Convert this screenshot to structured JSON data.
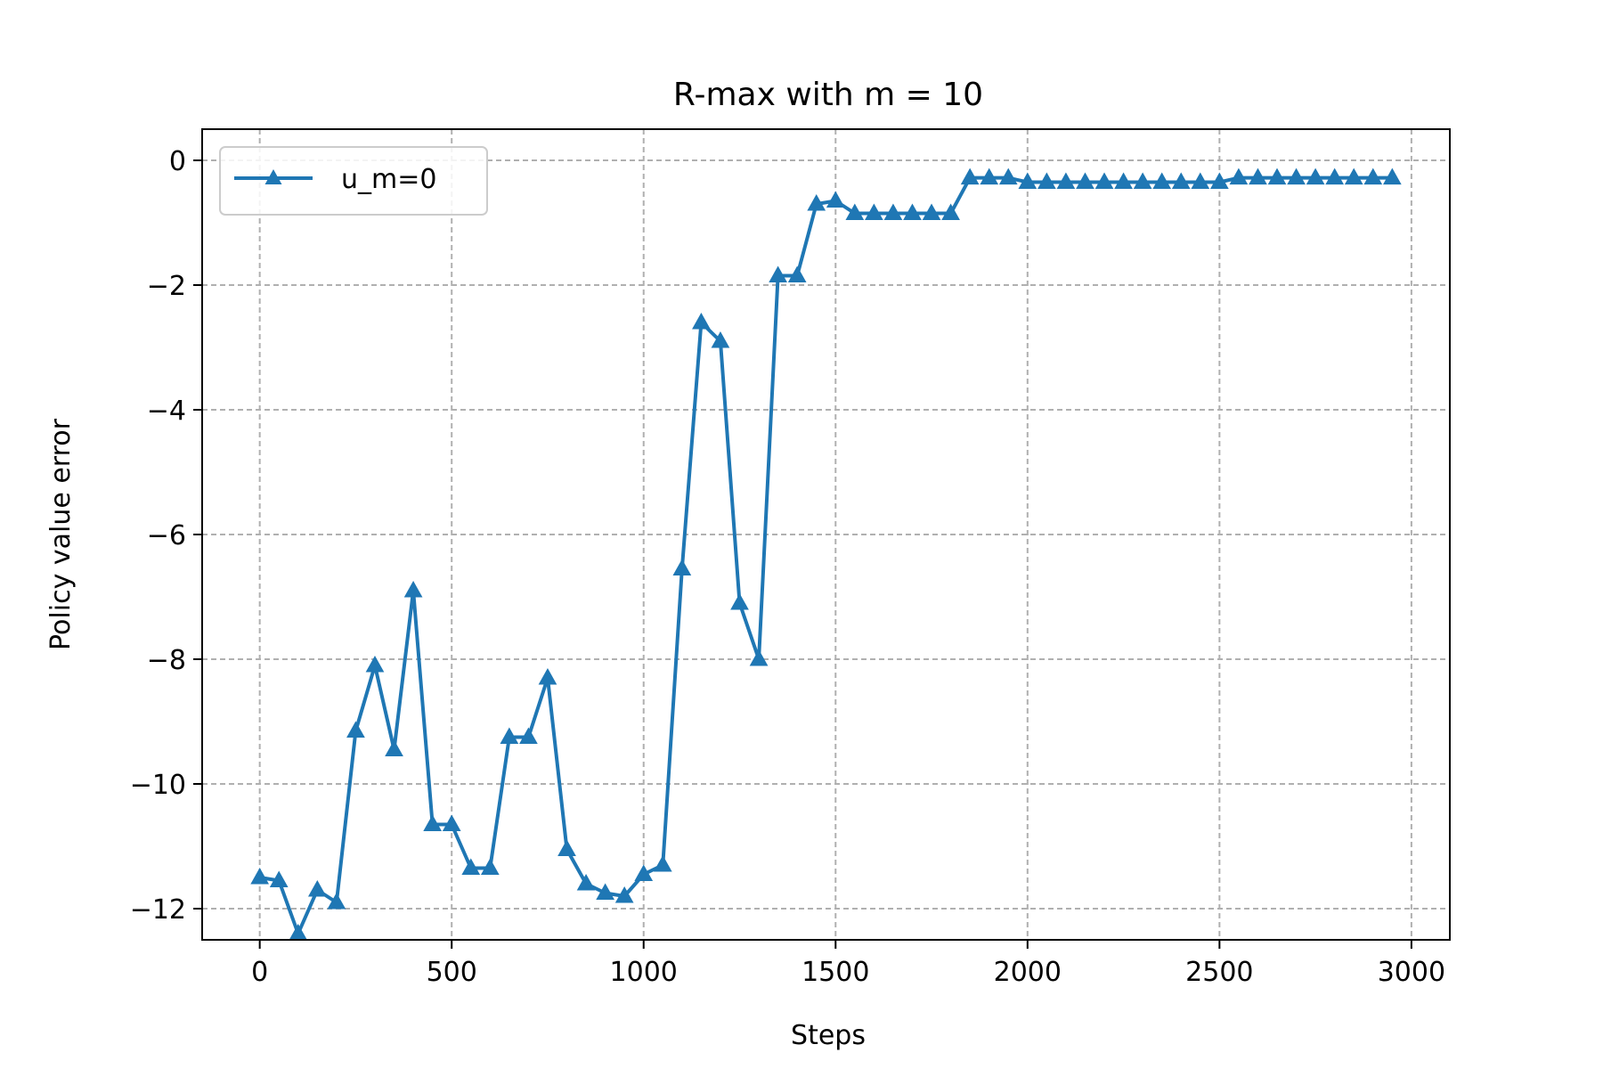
{
  "chart_data": {
    "type": "line",
    "title": "R-max with m = 10",
    "xlabel": "Steps",
    "ylabel": "Policy value error",
    "xlim": [
      -150,
      3100
    ],
    "ylim": [
      -12.5,
      0.5
    ],
    "xticks": [
      0,
      500,
      1000,
      1500,
      2000,
      2500,
      3000
    ],
    "yticks": [
      0,
      -2,
      -4,
      -6,
      -8,
      -10,
      -12
    ],
    "xtick_labels": [
      "0",
      "500",
      "1000",
      "1500",
      "2000",
      "2500",
      "3000"
    ],
    "ytick_labels": [
      "0",
      "−2",
      "−4",
      "−6",
      "−8",
      "−10",
      "−12"
    ],
    "grid": true,
    "legend_position": "upper-left",
    "series": [
      {
        "name": "u_m=0",
        "color": "#1f77b4",
        "marker": "triangle-up",
        "x": [
          0,
          50,
          100,
          150,
          200,
          250,
          300,
          350,
          400,
          450,
          500,
          550,
          600,
          650,
          700,
          750,
          800,
          850,
          900,
          950,
          1000,
          1050,
          1100,
          1150,
          1200,
          1250,
          1300,
          1350,
          1400,
          1450,
          1500,
          1550,
          1600,
          1650,
          1700,
          1750,
          1800,
          1850,
          1900,
          1950,
          2000,
          2050,
          2100,
          2150,
          2200,
          2250,
          2300,
          2350,
          2400,
          2450,
          2500,
          2550,
          2600,
          2650,
          2700,
          2750,
          2800,
          2850,
          2900,
          2950
        ],
        "y": [
          -11.5,
          -11.55,
          -12.4,
          -11.7,
          -11.9,
          -9.15,
          -8.1,
          -9.45,
          -6.9,
          -10.65,
          -10.65,
          -11.35,
          -11.35,
          -9.25,
          -9.25,
          -8.3,
          -11.05,
          -11.6,
          -11.75,
          -11.8,
          -11.45,
          -11.3,
          -6.55,
          -2.6,
          -2.9,
          -7.1,
          -8.0,
          -1.85,
          -1.85,
          -0.7,
          -0.65,
          -0.85,
          -0.85,
          -0.85,
          -0.85,
          -0.85,
          -0.85,
          -0.28,
          -0.28,
          -0.28,
          -0.35,
          -0.35,
          -0.35,
          -0.35,
          -0.35,
          -0.35,
          -0.35,
          -0.35,
          -0.35,
          -0.35,
          -0.35,
          -0.28,
          -0.28,
          -0.28,
          -0.28,
          -0.28,
          -0.28,
          -0.28,
          -0.28,
          -0.28
        ]
      }
    ]
  }
}
